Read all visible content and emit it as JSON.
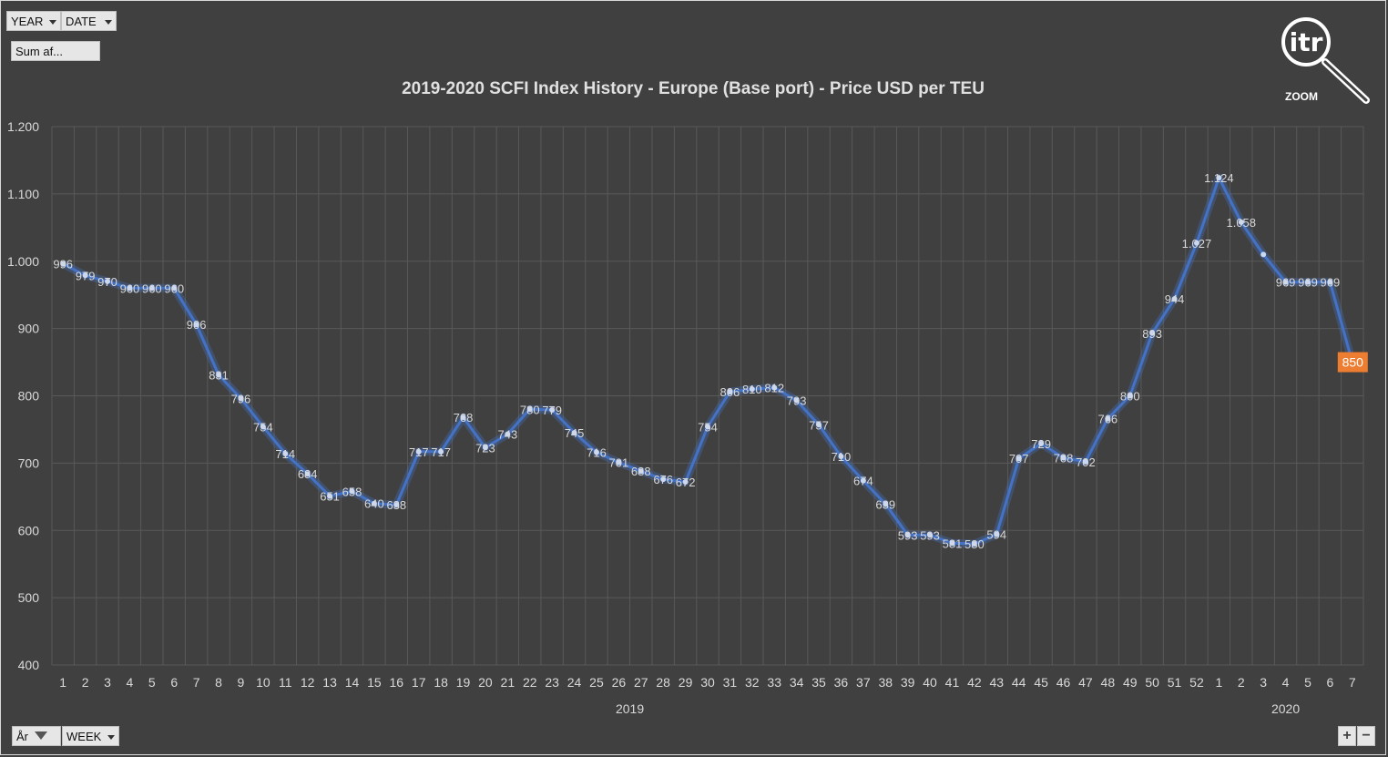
{
  "controls": {
    "year_label": "YEAR",
    "date_label": "DATE",
    "sum_label": "Sum af...",
    "ar_label": "År",
    "week_label": "WEEK",
    "zoom_in": "+",
    "zoom_out": "−"
  },
  "logo": {
    "text": "itr",
    "caption": "ZOOM"
  },
  "colors": {
    "line": "#4472c4",
    "highlight": "#ed7d31",
    "background": "#404040",
    "grid": "#595959",
    "text": "#d9d9d9"
  },
  "chart_data": {
    "type": "line",
    "title": "2019-2020 SCFI Index History - Europe (Base port) - Price  USD per TEU",
    "xlabel": "",
    "ylabel": "",
    "ylim": [
      400,
      1200
    ],
    "yticks": [
      "400",
      "500",
      "600",
      "700",
      "800",
      "900",
      "1.000",
      "1.100",
      "1.200"
    ],
    "grid": true,
    "groups": [
      {
        "label": "2019",
        "categories": [
          "1",
          "2",
          "3",
          "4",
          "5",
          "6",
          "7",
          "8",
          "9",
          "10",
          "11",
          "12",
          "13",
          "14",
          "15",
          "16",
          "17",
          "18",
          "19",
          "20",
          "21",
          "22",
          "23",
          "24",
          "25",
          "26",
          "27",
          "28",
          "29",
          "30",
          "31",
          "32",
          "33",
          "34",
          "35",
          "36",
          "37",
          "38",
          "39",
          "40",
          "41",
          "42",
          "43",
          "44",
          "45",
          "46",
          "47",
          "48",
          "49",
          "50",
          "51",
          "52"
        ]
      },
      {
        "label": "2020",
        "categories": [
          "1",
          "2",
          "3",
          "4",
          "5",
          "6",
          "7"
        ]
      }
    ],
    "values": [
      996,
      979,
      970,
      960,
      960,
      960,
      906,
      831,
      796,
      754,
      714,
      684,
      651,
      658,
      640,
      638,
      717,
      717,
      768,
      723,
      743,
      780,
      779,
      745,
      716,
      701,
      688,
      676,
      672,
      754,
      806,
      810,
      812,
      793,
      757,
      710,
      674,
      639,
      593,
      593,
      581,
      580,
      594,
      707,
      729,
      708,
      702,
      766,
      800,
      893,
      944,
      1027,
      1124,
      1058,
      1010,
      969,
      969,
      969,
      850
    ],
    "data_labels": [
      "996",
      "979",
      "970",
      "960",
      "960",
      "960",
      "906",
      "831",
      "796",
      "754",
      "714",
      "684",
      "651",
      "658",
      "640",
      "638",
      "717",
      "717",
      "768",
      "723",
      "743",
      "780",
      "779",
      "745",
      "716",
      "701",
      "688",
      "676",
      "672",
      "754",
      "806",
      "810",
      "812",
      "793",
      "757",
      "710",
      "674",
      "639",
      "593",
      "593",
      "581",
      "580",
      "594",
      "707",
      "729",
      "708",
      "702",
      "766",
      "800",
      "893",
      "944",
      "1.027",
      "1.124",
      "1.058",
      "",
      "969",
      "969",
      "969",
      "850"
    ],
    "highlight_last": true
  }
}
